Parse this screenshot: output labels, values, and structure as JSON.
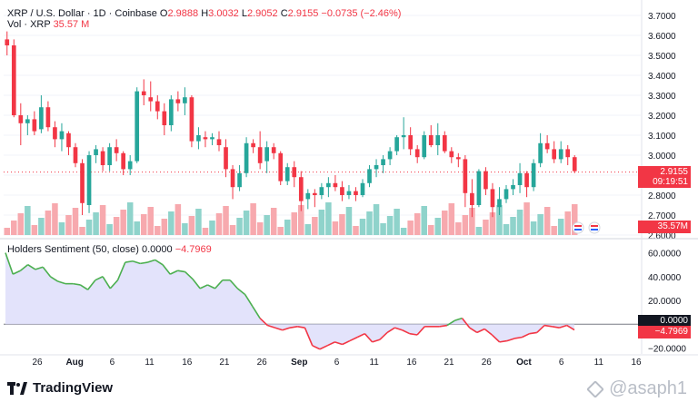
{
  "header": {
    "symbol": "XRP / U.S. Dollar · 1D · Coinbase",
    "open_label": "O",
    "open": "2.9888",
    "high_label": "H",
    "high": "3.0032",
    "low_label": "L",
    "low": "2.9052",
    "close_label": "C",
    "close": "2.9155",
    "change": "−0.0735 (−2.46%)",
    "volume_label": "Vol · XRP",
    "volume": "35.57 M"
  },
  "indicator": {
    "title": "Holders Sentiment (50, close)",
    "value_a": "0.0000",
    "value_b": "−4.7969"
  },
  "price_badge": {
    "price": "2.9155",
    "countdown": "09:19:51"
  },
  "volume_badge": "35.57M",
  "indicator_badges": {
    "zero": "0.0000",
    "value": "−4.7969"
  },
  "branding": {
    "logo_text": "TradingView",
    "watermark": "@asaph1"
  },
  "colors": {
    "up": "#26a69a",
    "down": "#f23645",
    "up_vol": "#8fd3cb",
    "down_vol": "#f7a9ae",
    "sentiment_up": "#4caf50",
    "sentiment_down": "#f23645",
    "fill_pos": "#dcdcfa",
    "fill_neg": "#dcdcfa"
  },
  "chart_data": [
    {
      "type": "candlestick",
      "title": "XRP / U.S. Dollar · 1D · Coinbase",
      "y_axis": {
        "ticks": [
          "3.7000",
          "3.6000",
          "3.5000",
          "3.4000",
          "3.3000",
          "3.2000",
          "3.1000",
          "3.0000",
          "2.9000",
          "2.8000",
          "2.7000",
          "2.6000"
        ],
        "ylim": [
          2.6,
          3.7
        ]
      },
      "x_axis": {
        "ticks": [
          "26",
          "Aug",
          "6",
          "11",
          "16",
          "21",
          "26",
          "Sep",
          "6",
          "11",
          "16",
          "21",
          "26",
          "Oct",
          "6",
          "11",
          "16"
        ]
      },
      "reference_line": 2.9155,
      "candles": [
        [
          3.58,
          3.62,
          3.5,
          3.55
        ],
        [
          3.55,
          3.58,
          3.19,
          3.2
        ],
        [
          3.2,
          3.26,
          3.05,
          3.16
        ],
        [
          3.16,
          3.2,
          3.1,
          3.18
        ],
        [
          3.18,
          3.22,
          3.1,
          3.12
        ],
        [
          3.13,
          3.3,
          3.11,
          3.24
        ],
        [
          3.24,
          3.27,
          3.12,
          3.14
        ],
        [
          3.14,
          3.17,
          3.04,
          3.08
        ],
        [
          3.08,
          3.16,
          3.02,
          3.12
        ],
        [
          3.11,
          3.12,
          3.0,
          3.04
        ],
        [
          3.04,
          3.06,
          2.94,
          2.96
        ],
        [
          2.96,
          2.98,
          2.7,
          2.76
        ],
        [
          2.75,
          3.02,
          2.71,
          3.0
        ],
        [
          3.0,
          3.05,
          2.96,
          3.03
        ],
        [
          3.02,
          3.04,
          2.92,
          2.95
        ],
        [
          2.95,
          3.06,
          2.92,
          3.04
        ],
        [
          3.04,
          3.08,
          2.97,
          3.01
        ],
        [
          3.01,
          3.02,
          2.9,
          2.93
        ],
        [
          2.93,
          3.0,
          2.9,
          2.97
        ],
        [
          2.97,
          3.34,
          2.96,
          3.32
        ],
        [
          3.32,
          3.38,
          3.25,
          3.3
        ],
        [
          3.29,
          3.37,
          3.22,
          3.27
        ],
        [
          3.27,
          3.3,
          3.18,
          3.22
        ],
        [
          3.22,
          3.26,
          3.1,
          3.15
        ],
        [
          3.15,
          3.3,
          3.12,
          3.28
        ],
        [
          3.28,
          3.32,
          3.22,
          3.26
        ],
        [
          3.26,
          3.34,
          3.2,
          3.29
        ],
        [
          3.29,
          3.3,
          3.04,
          3.07
        ],
        [
          3.07,
          3.14,
          3.03,
          3.1
        ],
        [
          3.09,
          3.12,
          3.04,
          3.08
        ],
        [
          3.08,
          3.11,
          3.05,
          3.09
        ],
        [
          3.08,
          3.12,
          3.02,
          3.05
        ],
        [
          3.04,
          3.08,
          2.89,
          2.93
        ],
        [
          2.93,
          2.95,
          2.78,
          2.84
        ],
        [
          2.84,
          2.95,
          2.82,
          2.91
        ],
        [
          2.91,
          3.09,
          2.89,
          3.06
        ],
        [
          3.06,
          3.08,
          3.01,
          3.04
        ],
        [
          3.04,
          3.12,
          2.93,
          2.96
        ],
        [
          2.97,
          3.07,
          2.91,
          3.04
        ],
        [
          3.04,
          3.06,
          2.98,
          3.01
        ],
        [
          3.01,
          3.02,
          2.85,
          2.87
        ],
        [
          2.87,
          2.96,
          2.85,
          2.94
        ],
        [
          2.94,
          2.97,
          2.84,
          2.89
        ],
        [
          2.89,
          2.92,
          2.72,
          2.77
        ],
        [
          2.78,
          2.83,
          2.73,
          2.81
        ],
        [
          2.81,
          2.83,
          2.74,
          2.8
        ],
        [
          2.8,
          2.86,
          2.78,
          2.84
        ],
        [
          2.84,
          2.89,
          2.79,
          2.86
        ],
        [
          2.86,
          2.9,
          2.82,
          2.84
        ],
        [
          2.84,
          2.87,
          2.77,
          2.8
        ],
        [
          2.8,
          2.85,
          2.78,
          2.82
        ],
        [
          2.82,
          2.84,
          2.77,
          2.8
        ],
        [
          2.8,
          2.88,
          2.79,
          2.86
        ],
        [
          2.86,
          2.95,
          2.84,
          2.93
        ],
        [
          2.93,
          2.98,
          2.89,
          2.95
        ],
        [
          2.95,
          3.0,
          2.91,
          2.98
        ],
        [
          2.98,
          3.04,
          2.95,
          3.02
        ],
        [
          3.02,
          3.1,
          3.0,
          3.09
        ],
        [
          3.09,
          3.19,
          3.03,
          3.1
        ],
        [
          3.1,
          3.14,
          3.0,
          3.03
        ],
        [
          3.03,
          3.05,
          2.96,
          2.99
        ],
        [
          2.99,
          3.12,
          2.98,
          3.1
        ],
        [
          3.1,
          3.15,
          3.04,
          3.05
        ],
        [
          3.05,
          3.16,
          3.0,
          3.1
        ],
        [
          3.1,
          3.12,
          3.01,
          3.02
        ],
        [
          3.02,
          3.04,
          2.96,
          2.99
        ],
        [
          2.99,
          3.01,
          2.94,
          2.98
        ],
        [
          2.98,
          3.0,
          2.74,
          2.81
        ],
        [
          2.81,
          2.88,
          2.69,
          2.75
        ],
        [
          2.75,
          2.93,
          2.74,
          2.92
        ],
        [
          2.92,
          2.94,
          2.8,
          2.83
        ],
        [
          2.83,
          2.86,
          2.69,
          2.74
        ],
        [
          2.74,
          2.84,
          2.7,
          2.78
        ],
        [
          2.78,
          2.85,
          2.76,
          2.83
        ],
        [
          2.83,
          2.88,
          2.8,
          2.85
        ],
        [
          2.85,
          2.96,
          2.81,
          2.91
        ],
        [
          2.91,
          2.92,
          2.79,
          2.84
        ],
        [
          2.84,
          2.98,
          2.82,
          2.96
        ],
        [
          2.96,
          3.11,
          2.94,
          3.06
        ],
        [
          3.06,
          3.1,
          3.01,
          3.03
        ],
        [
          3.03,
          3.07,
          2.96,
          2.98
        ],
        [
          2.98,
          3.07,
          2.96,
          3.03
        ],
        [
          3.03,
          3.05,
          2.95,
          2.99
        ],
        [
          2.99,
          3.0,
          2.91,
          2.92
        ]
      ]
    },
    {
      "type": "bar",
      "title": "Vol · XRP",
      "values_m": [
        35.57
      ]
    },
    {
      "type": "area",
      "title": "Holders Sentiment (50, close)",
      "y_axis": {
        "ticks": [
          "60.0000",
          "40.0000",
          "20.0000",
          "0.0000",
          "−20.0000"
        ],
        "ylim": [
          -25,
          65
        ]
      },
      "series": [
        {
          "values": [
            60,
            42,
            45,
            50,
            46,
            48,
            40,
            36,
            34,
            34,
            33,
            29,
            37,
            40,
            30,
            37,
            52,
            53,
            51,
            52,
            54,
            50,
            42,
            45,
            44,
            38,
            30,
            33,
            30,
            37,
            37,
            30,
            25,
            15,
            5,
            -1,
            -3,
            -5,
            -3,
            -2,
            -3,
            -18,
            -21,
            -18,
            -15,
            -17,
            -14,
            -11,
            -8,
            -15,
            -13,
            -7,
            -3,
            -5,
            -8,
            -9,
            -2,
            -2,
            -2,
            -1,
            3,
            5,
            -3,
            -7,
            -4,
            -9,
            -15,
            -14,
            -12,
            -11,
            -8,
            -7,
            -1,
            -2,
            -3,
            -1,
            -4.8
          ]
        }
      ]
    }
  ]
}
